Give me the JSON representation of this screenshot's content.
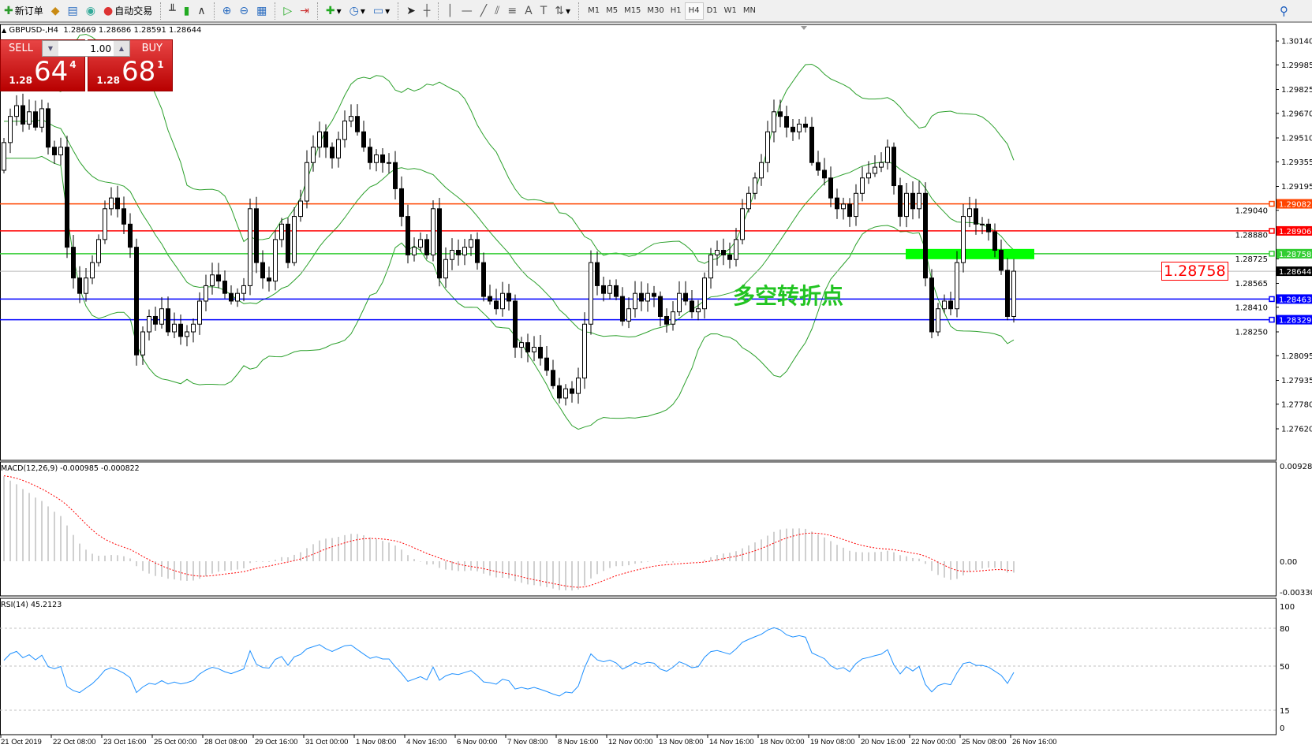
{
  "toolbar": {
    "new_order": "新订单",
    "auto_trade": "自动交易",
    "timeframes": [
      "M1",
      "M5",
      "M15",
      "M30",
      "H1",
      "H4",
      "D1",
      "W1",
      "MN"
    ],
    "active_timeframe": "H4"
  },
  "header": {
    "symbol": "GBPUSD-,H4",
    "ohlc": "1.28669 1.28686 1.28591 1.28644"
  },
  "trade_panel": {
    "sell_label": "SELL",
    "buy_label": "BUY",
    "lot": "1.00",
    "sell": {
      "small": "1.28",
      "large": "64",
      "sup": "4"
    },
    "buy": {
      "small": "1.28",
      "large": "68",
      "sup": "1"
    }
  },
  "annotation": {
    "text": "多空转折点",
    "price_box": "1.28758",
    "color": "#22c422"
  },
  "indicators": {
    "macd_label": "MACD(12,26,9) -0.000985 -0.000822",
    "rsi_label": "RSI(14) 45.2123"
  },
  "colors": {
    "bull_body": "#ffffff",
    "bear_body": "#000000",
    "bands": "#2ca02c",
    "macd_hist": "#c0c0c0",
    "macd_signal": "#ff0000",
    "rsi": "#1e90ff"
  },
  "chart_data": {
    "type": "candlestick",
    "symbol": "GBPUSD",
    "timeframe": "H4",
    "price_axis": {
      "ticks": [
        "1.30140",
        "1.29985",
        "1.29825",
        "1.29670",
        "1.29510",
        "1.29355",
        "1.29195",
        "1.29040",
        "1.28880",
        "1.28725",
        "1.28565",
        "1.28410",
        "1.28250",
        "1.28095",
        "1.27935",
        "1.27780",
        "1.27620"
      ],
      "range": [
        1.2762,
        1.3014
      ]
    },
    "time_labels": [
      "21 Oct 2019",
      "22 Oct 08:00",
      "23 Oct 16:00",
      "25 Oct 00:00",
      "28 Oct 08:00",
      "29 Oct 16:00",
      "31 Oct 00:00",
      "1 Nov 08:00",
      "4 Nov 16:00",
      "6 Nov 00:00",
      "7 Nov 08:00",
      "8 Nov 16:00",
      "12 Nov 00:00",
      "13 Nov 08:00",
      "14 Nov 16:00",
      "18 Nov 00:00",
      "19 Nov 08:00",
      "20 Nov 16:00",
      "22 Nov 00:00",
      "25 Nov 08:00",
      "26 Nov 16:00"
    ],
    "closes": [
      1.2948,
      1.2965,
      1.2972,
      1.296,
      1.2968,
      1.2958,
      1.297,
      1.2945,
      1.294,
      1.2945,
      1.288,
      1.286,
      1.285,
      1.286,
      1.287,
      1.2885,
      1.2905,
      1.2912,
      1.2905,
      1.2895,
      1.288,
      1.281,
      1.2825,
      1.2835,
      1.283,
      1.284,
      1.2825,
      1.283,
      1.2822,
      1.2825,
      1.283,
      1.2845,
      1.2855,
      1.2862,
      1.2858,
      1.285,
      1.2845,
      1.285,
      1.2855,
      1.2905,
      1.287,
      1.286,
      1.2858,
      1.2885,
      1.2895,
      1.287,
      1.29,
      1.291,
      1.2935,
      1.2945,
      1.2955,
      1.2945,
      1.2938,
      1.295,
      1.2962,
      1.2965,
      1.2955,
      1.2945,
      1.2935,
      1.294,
      1.2935,
      1.2935,
      1.2918,
      1.29,
      1.2875,
      1.288,
      1.2885,
      1.2875,
      1.2905,
      1.286,
      1.2872,
      1.2878,
      1.2875,
      1.288,
      1.2885,
      1.287,
      1.2848,
      1.2845,
      1.284,
      1.285,
      1.2845,
      1.2815,
      1.2818,
      1.2812,
      1.2815,
      1.2808,
      1.28,
      1.279,
      1.2782,
      1.2788,
      1.2785,
      1.2795,
      1.283,
      1.287,
      1.2855,
      1.285,
      1.2855,
      1.2848,
      1.2832,
      1.284,
      1.285,
      1.2845,
      1.285,
      1.2848,
      1.2835,
      1.283,
      1.2838,
      1.285,
      1.2845,
      1.2838,
      1.284,
      1.286,
      1.2875,
      1.2878,
      1.2875,
      1.2872,
      1.2885,
      1.2905,
      1.2915,
      1.2925,
      1.2935,
      1.2955,
      1.2968,
      1.2965,
      1.2958,
      1.2955,
      1.296,
      1.2958,
      1.2935,
      1.293,
      1.2925,
      1.2912,
      1.2905,
      1.2908,
      1.29,
      1.2915,
      1.2925,
      1.2928,
      1.2932,
      1.2935,
      1.2945,
      1.292,
      1.29,
      1.2915,
      1.2905,
      1.2915,
      1.286,
      1.2825,
      1.284,
      1.2845,
      1.284,
      1.287,
      1.29,
      1.2905,
      1.2895,
      1.2895,
      1.289,
      1.2878,
      1.2865,
      1.2835,
      1.28644
    ],
    "horizontal_lines": [
      {
        "price": 1.29082,
        "label": "1.29082",
        "color": "#ff4500"
      },
      {
        "price": 1.28906,
        "label": "1.28906",
        "color": "#ff0000"
      },
      {
        "price": 1.28758,
        "label": "1.28758",
        "color": "#32cd32"
      },
      {
        "price": 1.28463,
        "label": "1.28463",
        "color": "#0000ff"
      },
      {
        "price": 1.28329,
        "label": "1.28329",
        "color": "#0000ff"
      }
    ],
    "bid": {
      "price": 1.28644,
      "label": "1.28644"
    },
    "macd": {
      "params": [
        12,
        26,
        9
      ],
      "main": -0.000985,
      "signal": -0.000822,
      "axis": [
        "0.009285",
        "0.00",
        "-0.003305"
      ],
      "range": [
        -0.003305,
        0.009285
      ]
    },
    "rsi": {
      "period": 14,
      "value": 45.2123,
      "levels": [
        80,
        50,
        15
      ],
      "axis": [
        "100",
        "80",
        "50",
        "15",
        "0"
      ]
    }
  }
}
